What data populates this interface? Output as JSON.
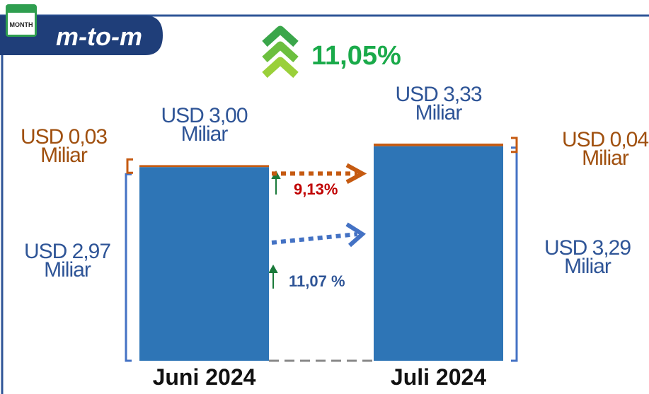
{
  "chart_data": {
    "type": "bar",
    "stacked": true,
    "icon_label": "MONTH",
    "title": "m-to-m",
    "categories": [
      "Juni 2024",
      "Juli 2024"
    ],
    "series": [
      {
        "color": "#2e75b6",
        "values": [
          2.97,
          3.29
        ],
        "value_labels": [
          "USD 2,97 Miliar",
          "USD 3,29 Miliar"
        ]
      },
      {
        "color": "#c55a11",
        "values": [
          0.03,
          0.04
        ],
        "value_labels": [
          "USD 0,03 Miliar",
          "USD 0,04 Miliar"
        ]
      }
    ],
    "total_labels": [
      "USD 3,00 Miliar",
      "USD  3,33 Miliar"
    ],
    "annotations": [
      {
        "text": "11,05%",
        "color": "#1aaa4a"
      },
      {
        "text": "9,13%",
        "color": "#c00000"
      },
      {
        "text": "11,07 %",
        "color": "#2f5597"
      }
    ]
  }
}
